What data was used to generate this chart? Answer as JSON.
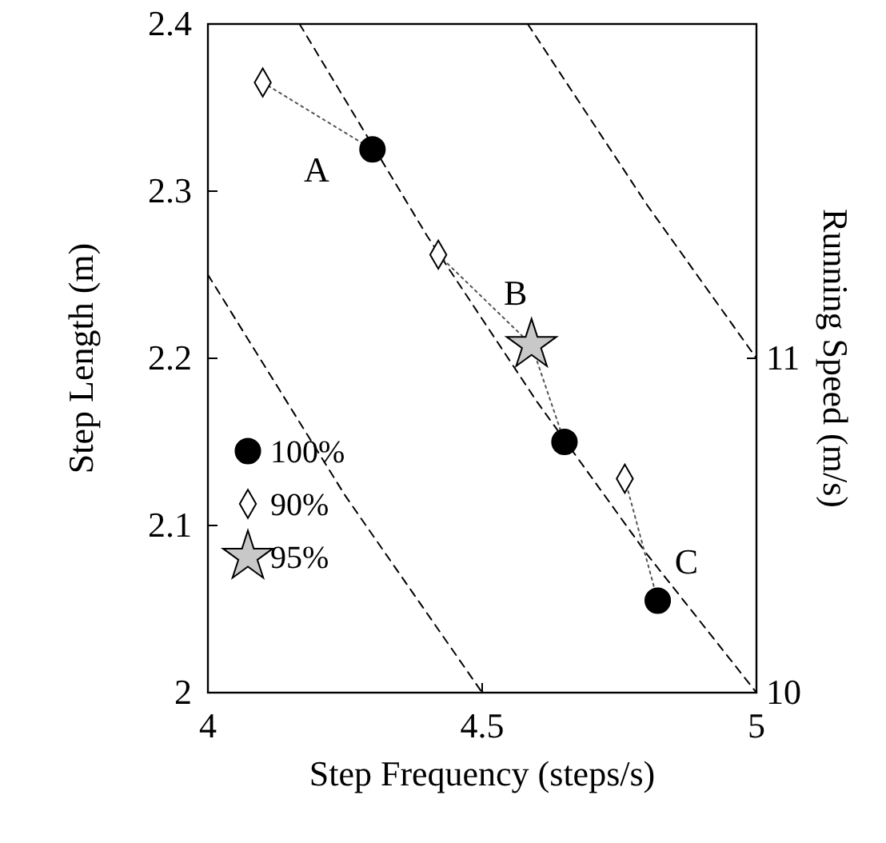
{
  "chart_data": {
    "type": "scatter",
    "xlabel": "Step Frequency (steps/s)",
    "ylabel": "Step Length (m)",
    "y2label": "Running Speed (m/s)",
    "xlim": [
      4,
      5
    ],
    "xticks": [
      4,
      4.5,
      5
    ],
    "ylim": [
      2,
      2.4
    ],
    "yticks": [
      2,
      2.1,
      2.2,
      2.3,
      2.4
    ],
    "y2lim": [
      10,
      12
    ],
    "y2ticks": [
      10,
      11
    ],
    "grid": false,
    "legend": "left",
    "series": [
      {
        "type": "line",
        "color": "#000000",
        "line_style": "dashed",
        "marker": "none",
        "x": [
          4,
          4.25,
          4.5
        ],
        "values": [
          2.25,
          2.118,
          2
        ]
      },
      {
        "type": "line",
        "color": "#000000",
        "line_style": "dashed",
        "marker": "none",
        "x": [
          4.167,
          4.4,
          4.6,
          4.8,
          5
        ],
        "values": [
          2.4,
          2.273,
          2.174,
          2.083,
          2
        ]
      },
      {
        "type": "line",
        "color": "#000000",
        "line_style": "dashed",
        "marker": "none",
        "x": [
          4.583,
          4.8,
          5
        ],
        "values": [
          2.4,
          2.292,
          2.2
        ]
      },
      {
        "type": "line",
        "color": "#555555",
        "line_style": "dotted",
        "marker": "none",
        "x": [
          4.1,
          4.3
        ],
        "values": [
          2.365,
          2.325
        ]
      },
      {
        "type": "line",
        "color": "#555555",
        "line_style": "dotted",
        "marker": "none",
        "x": [
          4.42,
          4.59,
          4.65
        ],
        "values": [
          2.262,
          2.208,
          2.15
        ]
      },
      {
        "type": "line",
        "color": "#555555",
        "line_style": "dotted",
        "marker": "none",
        "x": [
          4.76,
          4.82
        ],
        "values": [
          2.128,
          2.055
        ]
      },
      {
        "name": "100%",
        "color": "#000000",
        "marker": "circle",
        "x": [
          4.3,
          4.65,
          4.82
        ],
        "values": [
          2.325,
          2.15,
          2.055
        ]
      },
      {
        "name": "90%",
        "color": "#ffffff",
        "marker": "diamond",
        "x": [
          4.1,
          4.42,
          4.76
        ],
        "values": [
          2.365,
          2.262,
          2.128
        ]
      },
      {
        "name": "95%",
        "color": "#c8c8c8",
        "marker": "star",
        "x": [
          4.59
        ],
        "values": [
          2.208
        ]
      }
    ],
    "annotations": [
      "A",
      "B",
      "C"
    ]
  }
}
